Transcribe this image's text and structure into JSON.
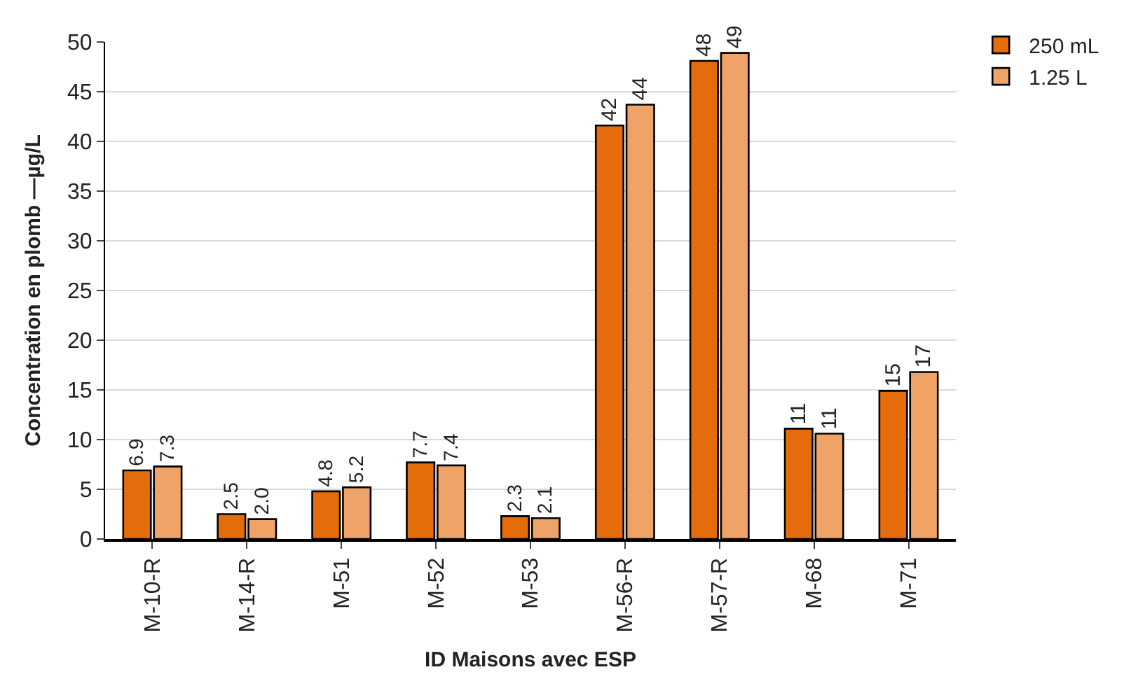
{
  "chart_data": {
    "type": "bar",
    "xlabel": "ID Maisons avec ESP",
    "ylabel": "Concentration en plomb —µg/L",
    "categories": [
      "M-10-R",
      "M-14-R",
      "M-51",
      "M-52",
      "M-53",
      "M-56-R",
      "M-57-R",
      "M-68",
      "M-71"
    ],
    "series": [
      {
        "name": "250 mL",
        "color": "#e46c0a",
        "values": [
          6.9,
          2.5,
          4.8,
          7.7,
          2.3,
          41.6,
          48.1,
          11.1,
          14.9
        ],
        "value_labels": [
          "6.9",
          "2.5",
          "4.8",
          "7.7",
          "2.3",
          "42",
          "48",
          "11",
          "15"
        ]
      },
      {
        "name": "1.25 L",
        "color": "#f0a366",
        "values": [
          7.3,
          2.0,
          5.2,
          7.4,
          2.1,
          43.7,
          48.9,
          10.6,
          16.8
        ],
        "value_labels": [
          "7.3",
          "2.0",
          "5.2",
          "7.4",
          "2.1",
          "44",
          "49",
          "11",
          "17"
        ]
      }
    ],
    "ylim": [
      0,
      50
    ],
    "yticks": [
      0,
      5,
      10,
      15,
      20,
      25,
      30,
      35,
      40,
      45,
      50
    ],
    "grid": "y",
    "legend": "top right"
  }
}
